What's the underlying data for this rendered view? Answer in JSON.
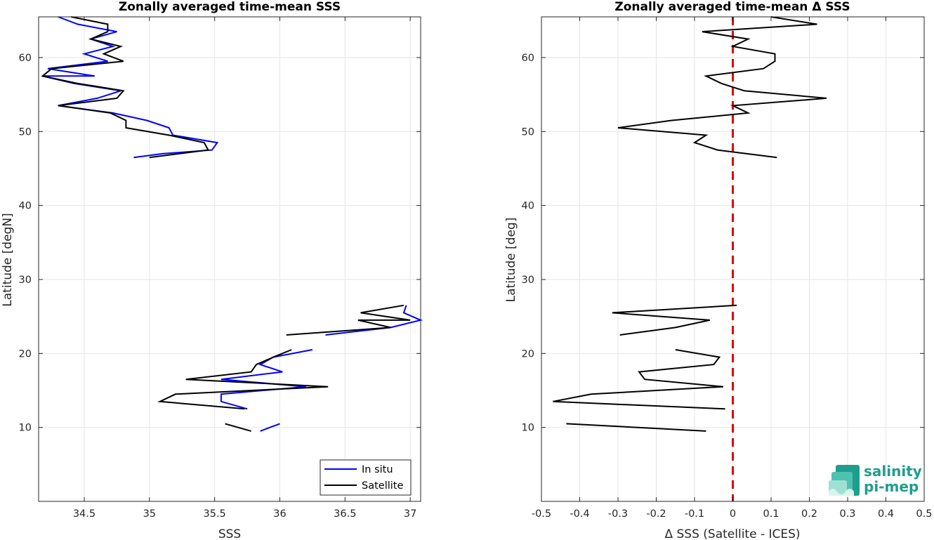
{
  "chart_data": [
    {
      "type": "line",
      "title": "Zonally averaged time-mean SSS",
      "xlabel": "SSS",
      "ylabel": "Latitude [degN]",
      "xlim": [
        34.15,
        37.08
      ],
      "ylim": [
        0,
        65.5
      ],
      "xticks": [
        34.5,
        35,
        35.5,
        36,
        36.5,
        37
      ],
      "xtick_labels": [
        "34.5",
        "35",
        "35.5",
        "36",
        "36.5",
        "37"
      ],
      "yticks": [
        10,
        20,
        30,
        40,
        50,
        60
      ],
      "ytick_labels": [
        "10",
        "20",
        "30",
        "40",
        "50",
        "60"
      ],
      "grid": true,
      "legend_position": "bottom-right",
      "series": [
        {
          "name": "In situ",
          "color": "#0000ff",
          "segments": [
            [
              [
                34.3,
                65.5
              ],
              [
                34.45,
                64.5
              ],
              [
                34.75,
                63.5
              ],
              [
                34.55,
                62.5
              ],
              [
                34.72,
                61.5
              ],
              [
                34.5,
                60.5
              ],
              [
                34.68,
                59.5
              ],
              [
                34.22,
                58.5
              ],
              [
                34.58,
                57.5
              ],
              [
                34.18,
                57.5
              ],
              [
                34.42,
                56.5
              ],
              [
                34.78,
                55.5
              ],
              [
                34.6,
                54.5
              ],
              [
                34.3,
                53.5
              ],
              [
                34.72,
                52.5
              ],
              [
                34.98,
                51.5
              ],
              [
                35.15,
                50.5
              ],
              [
                35.18,
                49.5
              ],
              [
                35.52,
                48.5
              ],
              [
                35.48,
                47.5
              ],
              [
                35.1,
                47.0
              ],
              [
                34.88,
                46.5
              ]
            ],
            [
              [
                35.75,
                12.5
              ],
              [
                35.55,
                13.5
              ],
              [
                35.55,
                14.5
              ],
              [
                36.2,
                15.5
              ],
              [
                35.55,
                16.5
              ],
              [
                36.02,
                17.5
              ],
              [
                35.85,
                18.5
              ],
              [
                35.95,
                19.5
              ],
              [
                36.25,
                20.5
              ]
            ],
            [
              [
                35.85,
                9.5
              ],
              [
                36.0,
                10.5
              ]
            ],
            [
              [
                36.35,
                22.5
              ],
              [
                36.85,
                23.5
              ],
              [
                37.08,
                24.5
              ],
              [
                36.95,
                25.5
              ],
              [
                36.97,
                26.5
              ]
            ]
          ]
        },
        {
          "name": "Satellite",
          "color": "#000000",
          "segments": [
            [
              [
                34.4,
                65.5
              ],
              [
                34.68,
                64.5
              ],
              [
                34.68,
                63.5
              ],
              [
                34.55,
                62.5
              ],
              [
                34.78,
                61.5
              ],
              [
                34.65,
                60.5
              ],
              [
                34.8,
                59.5
              ],
              [
                34.25,
                58.5
              ],
              [
                34.18,
                57.5
              ],
              [
                34.45,
                56.5
              ],
              [
                34.8,
                55.5
              ],
              [
                34.75,
                54.5
              ],
              [
                34.3,
                53.5
              ],
              [
                34.7,
                52.5
              ],
              [
                34.82,
                51.5
              ],
              [
                34.82,
                50.5
              ],
              [
                35.15,
                49.5
              ],
              [
                35.42,
                48.5
              ],
              [
                35.45,
                47.5
              ],
              [
                35.0,
                46.5
              ]
            ],
            [
              [
                35.73,
                12.5
              ],
              [
                35.08,
                13.5
              ],
              [
                35.2,
                14.5
              ],
              [
                36.37,
                15.5
              ],
              [
                35.28,
                16.5
              ],
              [
                35.78,
                17.5
              ],
              [
                35.82,
                18.5
              ],
              [
                35.95,
                19.5
              ],
              [
                36.09,
                20.5
              ]
            ],
            [
              [
                35.58,
                10.5
              ],
              [
                35.78,
                9.5
              ]
            ],
            [
              [
                36.05,
                22.5
              ],
              [
                36.85,
                23.5
              ],
              [
                36.6,
                24.5
              ],
              [
                37.0,
                24.5
              ],
              [
                36.62,
                25.5
              ],
              [
                36.95,
                26.5
              ]
            ]
          ]
        }
      ],
      "legend": {
        "in_situ": "In situ",
        "satellite": "Satellite"
      }
    },
    {
      "type": "line",
      "title": "Zonally averaged time-mean Δ SSS",
      "xlabel": "Δ SSS (Satellite - ICES)",
      "ylabel": "Latitude [deg]",
      "xlim": [
        -0.5,
        0.5
      ],
      "ylim": [
        0,
        65.5
      ],
      "xticks": [
        -0.5,
        -0.4,
        -0.3,
        -0.2,
        -0.1,
        0,
        0.1,
        0.2,
        0.3,
        0.4,
        0.5
      ],
      "xtick_labels": [
        "-0.5",
        "-0.4",
        "-0.3",
        "-0.2",
        "-0.1",
        "0",
        "0.1",
        "0.2",
        "0.3",
        "0.4",
        "0.5"
      ],
      "yticks": [
        10,
        20,
        30,
        40,
        50,
        60
      ],
      "ytick_labels": [
        "10",
        "20",
        "30",
        "40",
        "50",
        "60"
      ],
      "grid": true,
      "reference_line": {
        "x": 0,
        "color": "#dd0000",
        "style": "dashed"
      },
      "series": [
        {
          "name": "",
          "color": "#000000",
          "segments": [
            [
              [
                0.1,
                65.5
              ],
              [
                0.22,
                64.5
              ],
              [
                -0.08,
                63.5
              ],
              [
                0.04,
                62.5
              ],
              [
                0.0,
                61.5
              ],
              [
                0.11,
                60.5
              ],
              [
                0.11,
                59.5
              ],
              [
                0.08,
                58.5
              ],
              [
                -0.07,
                57.5
              ],
              [
                -0.03,
                56.5
              ],
              [
                0.03,
                55.5
              ],
              [
                0.245,
                54.5
              ],
              [
                0.0,
                53.5
              ],
              [
                0.04,
                52.5
              ],
              [
                -0.16,
                51.5
              ],
              [
                -0.3,
                50.5
              ],
              [
                -0.07,
                49.5
              ],
              [
                -0.1,
                48.5
              ],
              [
                -0.04,
                47.5
              ],
              [
                0.115,
                46.5
              ]
            ],
            [
              [
                -0.435,
                10.5
              ],
              [
                -0.07,
                9.5
              ]
            ],
            [
              [
                -0.02,
                12.5
              ],
              [
                -0.47,
                13.5
              ],
              [
                -0.37,
                14.5
              ],
              [
                -0.025,
                15.5
              ],
              [
                -0.23,
                16.5
              ],
              [
                -0.245,
                17.5
              ],
              [
                -0.05,
                18.5
              ],
              [
                -0.035,
                19.5
              ],
              [
                -0.15,
                20.5
              ]
            ],
            [
              [
                -0.295,
                22.5
              ],
              [
                -0.15,
                23.5
              ],
              [
                -0.06,
                24.5
              ],
              [
                -0.315,
                25.5
              ],
              [
                0.01,
                26.5
              ]
            ]
          ]
        }
      ]
    }
  ],
  "logo": {
    "line1": "salinity",
    "line2": "pi-mep"
  }
}
